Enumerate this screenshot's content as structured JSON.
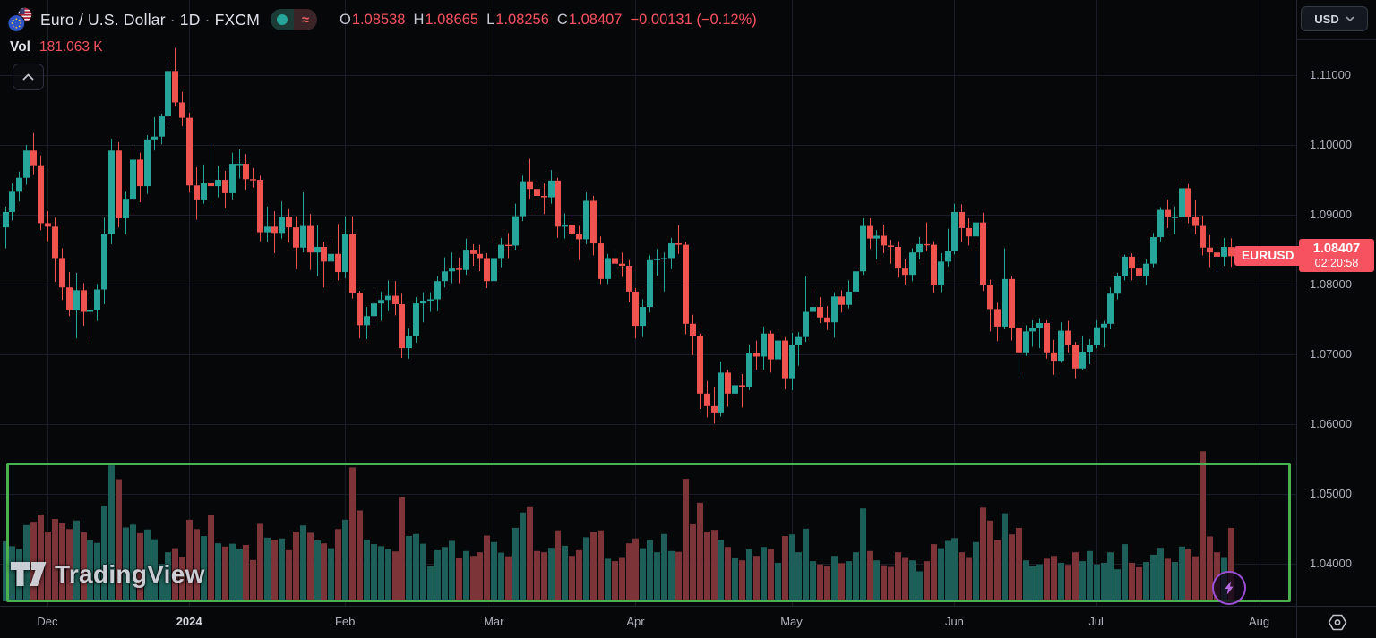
{
  "header": {
    "symbol_title": "Euro / U.S. Dollar",
    "sep": "·",
    "timeframe": "1D",
    "exchange": "FXCM",
    "market_status": {
      "delayed_glyph": "≈"
    },
    "ohlc": {
      "o_label": "O",
      "o": "1.08538",
      "h_label": "H",
      "h": "1.08665",
      "l_label": "L",
      "l": "1.08256",
      "c_label": "C",
      "c": "1.08407",
      "change": "−0.00131 (−0.12%)"
    },
    "volume_row": {
      "label": "Vol",
      "value": "181.063 K"
    }
  },
  "price_label": {
    "symbol": "EURUSD",
    "price": "1.08407",
    "countdown": "02:20:58"
  },
  "currency_button": {
    "label": "USD"
  },
  "watermark": {
    "text": "TradingView"
  },
  "icons": {
    "flag_pair": "eu-us-flags",
    "market_open": "teal-dot",
    "collapse": "chevron-up",
    "currency_chevron": "chevron-down",
    "bolt": "lightning",
    "corner": "hexagon-gear"
  },
  "colors": {
    "background": "#060709",
    "grid": "#181d27",
    "up": "#26a69a",
    "down": "#ef5350",
    "vol_up": "#1d5f58",
    "vol_down": "#7d3439",
    "accent_red": "#f7525f",
    "rect_green": "#4caf50",
    "purple": "#a855d8",
    "axis_text": "#b0b3bd"
  },
  "axes": {
    "price_ticks": [
      {
        "label": "1.11000",
        "price": 1.11
      },
      {
        "label": "1.10000",
        "price": 1.1
      },
      {
        "label": "1.09000",
        "price": 1.09
      },
      {
        "label": "1.08000",
        "price": 1.08
      },
      {
        "label": "1.07000",
        "price": 1.07
      },
      {
        "label": "1.06000",
        "price": 1.06
      },
      {
        "label": "1.05000",
        "price": 1.05
      },
      {
        "label": "1.04000",
        "price": 1.04
      }
    ],
    "time_ticks": [
      {
        "label": "Dec",
        "index": 6
      },
      {
        "label": "2024",
        "index": 26,
        "emph": true
      },
      {
        "label": "Feb",
        "index": 48
      },
      {
        "label": "Mar",
        "index": 69
      },
      {
        "label": "Apr",
        "index": 89
      },
      {
        "label": "May",
        "index": 111
      },
      {
        "label": "Jun",
        "index": 134
      },
      {
        "label": "Jul",
        "index": 154
      },
      {
        "label": "Aug",
        "index": 177
      }
    ]
  },
  "chart_data": {
    "type": "candlestick",
    "symbol": "EURUSD",
    "timeframe": "1D",
    "title": "Euro / U.S. Dollar · 1D · FXCM",
    "price_range": {
      "top": 1.12077,
      "bottom": 1.034
    },
    "last_price": 1.08407,
    "volume_axis_max": 375,
    "volume_unit": "K",
    "columns": [
      "open",
      "high",
      "low",
      "close",
      "volume_k"
    ],
    "candles": [
      [
        1.0882,
        1.0912,
        1.0852,
        1.0904,
        148
      ],
      [
        1.0904,
        1.0945,
        1.0892,
        1.0933,
        136
      ],
      [
        1.0933,
        1.0962,
        1.0919,
        1.0953,
        129
      ],
      [
        1.0953,
        1.1,
        1.0943,
        1.0992,
        188
      ],
      [
        1.0992,
        1.1017,
        1.0957,
        1.0971,
        196
      ],
      [
        1.0971,
        1.0985,
        1.0878,
        1.0888,
        214
      ],
      [
        1.0888,
        1.0905,
        1.0862,
        1.0883,
        172
      ],
      [
        1.0883,
        1.0896,
        1.0804,
        1.0838,
        203
      ],
      [
        1.0838,
        1.0852,
        1.0778,
        1.0796,
        192
      ],
      [
        1.0796,
        1.0818,
        1.0755,
        1.0763,
        178
      ],
      [
        1.0763,
        1.0817,
        1.0723,
        1.0792,
        199
      ],
      [
        1.0792,
        1.0802,
        1.0741,
        1.0761,
        170
      ],
      [
        1.0761,
        1.0779,
        1.0723,
        1.0764,
        151
      ],
      [
        1.0764,
        1.0801,
        1.0748,
        1.0793,
        144
      ],
      [
        1.0793,
        1.0896,
        1.0772,
        1.0873,
        236
      ],
      [
        1.0873,
        1.1009,
        1.0858,
        1.0992,
        335
      ],
      [
        1.0992,
        1.1004,
        1.0882,
        1.0895,
        301
      ],
      [
        1.0895,
        1.0933,
        1.0872,
        1.0923,
        182
      ],
      [
        1.0923,
        1.0997,
        1.0902,
        1.0979,
        189
      ],
      [
        1.0979,
        1.0989,
        1.0918,
        1.0941,
        168
      ],
      [
        1.0941,
        1.1014,
        1.093,
        1.1008,
        177
      ],
      [
        1.1008,
        1.104,
        1.0992,
        1.1012,
        153
      ],
      [
        1.1012,
        1.1045,
        1.1001,
        1.1041,
        92
      ],
      [
        1.1041,
        1.1122,
        1.1032,
        1.1106,
        121
      ],
      [
        1.1106,
        1.1139,
        1.1055,
        1.1061,
        131
      ],
      [
        1.1061,
        1.1076,
        1.1027,
        1.1039,
        109
      ],
      [
        1.1039,
        1.1046,
        1.0932,
        1.0942,
        201
      ],
      [
        1.0942,
        1.0968,
        1.0893,
        1.0922,
        178
      ],
      [
        1.0922,
        1.0972,
        1.0916,
        1.0945,
        161
      ],
      [
        1.0945,
        1.0999,
        1.0914,
        1.0941,
        212
      ],
      [
        1.0941,
        1.097,
        1.0925,
        1.095,
        143
      ],
      [
        1.095,
        1.0963,
        1.0909,
        1.0931,
        135
      ],
      [
        1.0931,
        1.0989,
        1.0922,
        1.0973,
        142
      ],
      [
        1.0973,
        1.0994,
        1.0952,
        1.0973,
        129
      ],
      [
        1.0973,
        1.0987,
        1.0936,
        1.0951,
        139
      ],
      [
        1.0951,
        1.0967,
        1.0939,
        1.095,
        102
      ],
      [
        1.095,
        1.0956,
        1.0862,
        1.0875,
        191
      ],
      [
        1.0875,
        1.0912,
        1.0861,
        1.0883,
        157
      ],
      [
        1.0883,
        1.0905,
        1.0845,
        1.0874,
        152
      ],
      [
        1.0874,
        1.0919,
        1.0866,
        1.0897,
        155
      ],
      [
        1.0897,
        1.0908,
        1.086,
        1.0882,
        126
      ],
      [
        1.0882,
        1.0898,
        1.0822,
        1.0853,
        172
      ],
      [
        1.0853,
        1.0932,
        1.0846,
        1.0884,
        187
      ],
      [
        1.0884,
        1.0901,
        1.0821,
        1.0846,
        169
      ],
      [
        1.0846,
        1.0885,
        1.0812,
        1.0854,
        150
      ],
      [
        1.0854,
        1.0861,
        1.0796,
        1.0833,
        143
      ],
      [
        1.0833,
        1.0866,
        1.0807,
        1.0844,
        131
      ],
      [
        1.0844,
        1.0887,
        1.0806,
        1.0818,
        178
      ],
      [
        1.0818,
        1.0898,
        1.0809,
        1.0872,
        201
      ],
      [
        1.0872,
        1.0898,
        1.078,
        1.0788,
        330
      ],
      [
        1.0788,
        1.0791,
        1.0723,
        1.0742,
        224
      ],
      [
        1.0742,
        1.0768,
        1.0722,
        1.0755,
        152
      ],
      [
        1.0755,
        1.0792,
        1.0741,
        1.0773,
        141
      ],
      [
        1.0773,
        1.079,
        1.0748,
        1.0778,
        136
      ],
      [
        1.0778,
        1.0806,
        1.0762,
        1.0784,
        129
      ],
      [
        1.0784,
        1.0805,
        1.0756,
        1.0772,
        123
      ],
      [
        1.0772,
        1.0787,
        1.0695,
        1.0709,
        258
      ],
      [
        1.0709,
        1.0737,
        1.0694,
        1.0726,
        161
      ],
      [
        1.0726,
        1.0782,
        1.0717,
        1.0773,
        166
      ],
      [
        1.0773,
        1.0789,
        1.0746,
        1.0777,
        142
      ],
      [
        1.0777,
        1.0789,
        1.0761,
        1.0779,
        87
      ],
      [
        1.0779,
        1.0812,
        1.0762,
        1.0805,
        126
      ],
      [
        1.0805,
        1.0839,
        1.0796,
        1.0819,
        134
      ],
      [
        1.0819,
        1.0846,
        1.0802,
        1.0823,
        149
      ],
      [
        1.0823,
        1.0839,
        1.0802,
        1.0821,
        106
      ],
      [
        1.0821,
        1.0866,
        1.0814,
        1.085,
        124
      ],
      [
        1.085,
        1.0858,
        1.0827,
        1.0844,
        112
      ],
      [
        1.0844,
        1.0857,
        1.0819,
        1.0838,
        121
      ],
      [
        1.0838,
        1.0845,
        1.0795,
        1.0805,
        162
      ],
      [
        1.0805,
        1.0863,
        1.0798,
        1.0838,
        146
      ],
      [
        1.0838,
        1.0867,
        1.0825,
        1.0857,
        120
      ],
      [
        1.0857,
        1.0874,
        1.0838,
        1.0856,
        111
      ],
      [
        1.0856,
        1.0916,
        1.085,
        1.0898,
        181
      ],
      [
        1.0898,
        1.0956,
        1.0891,
        1.0948,
        219
      ],
      [
        1.0948,
        1.098,
        1.0923,
        1.0937,
        232
      ],
      [
        1.0937,
        1.0949,
        1.0908,
        1.0927,
        124
      ],
      [
        1.0927,
        1.0945,
        1.0901,
        1.0925,
        121
      ],
      [
        1.0925,
        1.0964,
        1.0916,
        1.0949,
        132
      ],
      [
        1.0949,
        1.0953,
        1.0867,
        1.0883,
        175
      ],
      [
        1.0883,
        1.0902,
        1.0866,
        1.0886,
        137
      ],
      [
        1.0886,
        1.0895,
        1.0856,
        1.0872,
        112
      ],
      [
        1.0872,
        1.0884,
        1.0835,
        1.0865,
        126
      ],
      [
        1.0865,
        1.0932,
        1.0858,
        1.092,
        158
      ],
      [
        1.092,
        1.0927,
        1.0842,
        1.0859,
        171
      ],
      [
        1.0859,
        1.0869,
        1.0801,
        1.0808,
        175
      ],
      [
        1.0808,
        1.0844,
        1.0801,
        1.0838,
        105
      ],
      [
        1.0838,
        1.0849,
        1.0816,
        1.083,
        99
      ],
      [
        1.083,
        1.0846,
        1.0811,
        1.0827,
        107
      ],
      [
        1.0827,
        1.0835,
        1.0775,
        1.079,
        143
      ],
      [
        1.079,
        1.0795,
        1.0723,
        1.0741,
        155
      ],
      [
        1.0741,
        1.0779,
        1.0725,
        1.0768,
        131
      ],
      [
        1.0768,
        1.0842,
        1.076,
        1.0835,
        151
      ],
      [
        1.0835,
        1.0851,
        1.0813,
        1.0837,
        121
      ],
      [
        1.0837,
        1.0846,
        1.079,
        1.0838,
        166
      ],
      [
        1.0838,
        1.0867,
        1.0822,
        1.0859,
        124
      ],
      [
        1.0859,
        1.0885,
        1.0844,
        1.0857,
        122
      ],
      [
        1.0857,
        1.0861,
        1.0729,
        1.0744,
        302
      ],
      [
        1.0744,
        1.0757,
        1.0699,
        1.0727,
        190
      ],
      [
        1.0727,
        1.073,
        1.0622,
        1.0644,
        243
      ],
      [
        1.0644,
        1.0662,
        1.061,
        1.0626,
        172
      ],
      [
        1.0626,
        1.0654,
        1.0601,
        1.0617,
        176
      ],
      [
        1.0617,
        1.069,
        1.0611,
        1.0674,
        152
      ],
      [
        1.0674,
        1.0678,
        1.0625,
        1.0644,
        134
      ],
      [
        1.0644,
        1.0678,
        1.064,
        1.0656,
        106
      ],
      [
        1.0656,
        1.0672,
        1.0624,
        1.0654,
        101
      ],
      [
        1.0654,
        1.0714,
        1.0649,
        1.0702,
        128
      ],
      [
        1.0702,
        1.072,
        1.0678,
        1.0697,
        112
      ],
      [
        1.0697,
        1.074,
        1.0678,
        1.073,
        134
      ],
      [
        1.073,
        1.0734,
        1.0674,
        1.0693,
        129
      ],
      [
        1.0693,
        1.0733,
        1.0689,
        1.072,
        95
      ],
      [
        1.072,
        1.0725,
        1.065,
        1.0666,
        161
      ],
      [
        1.0666,
        1.0731,
        1.0649,
        1.0714,
        165
      ],
      [
        1.0714,
        1.0732,
        1.0684,
        1.0725,
        121
      ],
      [
        1.0725,
        1.0812,
        1.0718,
        1.0761,
        179
      ],
      [
        1.0761,
        1.0791,
        1.0752,
        1.0768,
        99
      ],
      [
        1.0768,
        1.0782,
        1.0745,
        1.0753,
        91
      ],
      [
        1.0753,
        1.0769,
        1.0735,
        1.0746,
        87
      ],
      [
        1.0746,
        1.0789,
        1.0724,
        1.0783,
        112
      ],
      [
        1.0783,
        1.0792,
        1.076,
        1.0771,
        94
      ],
      [
        1.0771,
        1.0806,
        1.0766,
        1.079,
        99
      ],
      [
        1.079,
        1.0826,
        1.0784,
        1.0819,
        121
      ],
      [
        1.0819,
        1.0895,
        1.0814,
        1.0884,
        229
      ],
      [
        1.0884,
        1.0895,
        1.0851,
        1.0866,
        124
      ],
      [
        1.0866,
        1.0878,
        1.0836,
        1.087,
        101
      ],
      [
        1.087,
        1.0886,
        1.0845,
        1.0856,
        89
      ],
      [
        1.0856,
        1.0864,
        1.083,
        1.0854,
        85
      ],
      [
        1.0854,
        1.0862,
        1.081,
        1.0823,
        121
      ],
      [
        1.0823,
        1.0836,
        1.08,
        1.0814,
        107
      ],
      [
        1.0814,
        1.0852,
        1.0805,
        1.0846,
        101
      ],
      [
        1.0846,
        1.0868,
        1.0836,
        1.0858,
        74
      ],
      [
        1.0858,
        1.0889,
        1.0848,
        1.0857,
        99
      ],
      [
        1.0857,
        1.0862,
        1.0788,
        1.0799,
        141
      ],
      [
        1.0799,
        1.0845,
        1.0789,
        1.0833,
        131
      ],
      [
        1.0833,
        1.088,
        1.0826,
        1.0848,
        149
      ],
      [
        1.0848,
        1.0916,
        1.0843,
        1.0904,
        156
      ],
      [
        1.0904,
        1.0915,
        1.0861,
        1.0881,
        121
      ],
      [
        1.0881,
        1.0895,
        1.0856,
        1.0869,
        107
      ],
      [
        1.0869,
        1.0902,
        1.0852,
        1.0889,
        146
      ],
      [
        1.0889,
        1.0903,
        1.0791,
        1.08,
        231
      ],
      [
        1.08,
        1.0807,
        1.0733,
        1.0765,
        199
      ],
      [
        1.0765,
        1.0774,
        1.0719,
        1.074,
        151
      ],
      [
        1.074,
        1.0852,
        1.0736,
        1.0808,
        217
      ],
      [
        1.0808,
        1.0812,
        1.072,
        1.0738,
        165
      ],
      [
        1.0738,
        1.0742,
        1.0667,
        1.0703,
        181
      ],
      [
        1.0703,
        1.0742,
        1.0698,
        1.0733,
        101
      ],
      [
        1.0733,
        1.0749,
        1.0711,
        1.0738,
        87
      ],
      [
        1.0738,
        1.0752,
        1.0709,
        1.0745,
        91
      ],
      [
        1.0745,
        1.0749,
        1.0694,
        1.0703,
        105
      ],
      [
        1.0703,
        1.0721,
        1.0671,
        1.0691,
        112
      ],
      [
        1.0691,
        1.0746,
        1.0688,
        1.0734,
        95
      ],
      [
        1.0734,
        1.0748,
        1.0703,
        1.0714,
        90
      ],
      [
        1.0714,
        1.0718,
        1.0666,
        1.068,
        121
      ],
      [
        1.068,
        1.0726,
        1.0678,
        1.0704,
        99
      ],
      [
        1.0704,
        1.0722,
        1.0686,
        1.0713,
        124
      ],
      [
        1.0713,
        1.0749,
        1.0709,
        1.0739,
        91
      ],
      [
        1.0739,
        1.0748,
        1.071,
        1.0744,
        95
      ],
      [
        1.0744,
        1.0796,
        1.0736,
        1.0787,
        121
      ],
      [
        1.0787,
        1.0817,
        1.0779,
        1.0812,
        79
      ],
      [
        1.0812,
        1.0843,
        1.0806,
        1.084,
        141
      ],
      [
        1.084,
        1.0845,
        1.0806,
        1.0823,
        95
      ],
      [
        1.0823,
        1.0834,
        1.0804,
        1.0813,
        84
      ],
      [
        1.0813,
        1.0836,
        1.0799,
        1.083,
        97
      ],
      [
        1.083,
        1.0874,
        1.0825,
        1.0868,
        115
      ],
      [
        1.0868,
        1.0911,
        1.0862,
        1.0907,
        132
      ],
      [
        1.0907,
        1.0922,
        1.0881,
        1.0897,
        105
      ],
      [
        1.0897,
        1.0912,
        1.0872,
        1.0897,
        97
      ],
      [
        1.0897,
        1.0948,
        1.0891,
        1.0938,
        135
      ],
      [
        1.0938,
        1.0944,
        1.0888,
        1.0897,
        128
      ],
      [
        1.0897,
        1.0921,
        1.0872,
        1.0884,
        111
      ],
      [
        1.0884,
        1.0899,
        1.0842,
        1.0853,
        370
      ],
      [
        1.0853,
        1.0871,
        1.0825,
        1.0846,
        160
      ],
      [
        1.0846,
        1.0858,
        1.0822,
        1.084,
        121
      ],
      [
        1.084,
        1.0867,
        1.0827,
        1.0854,
        107
      ],
      [
        1.08538,
        1.08665,
        1.08256,
        1.08407,
        181.063
      ]
    ],
    "annotations": [
      {
        "type": "rectangle",
        "purpose": "volume-pane-highlight",
        "color": "#4caf50"
      },
      {
        "type": "button",
        "purpose": "lightning-quick-action",
        "color": "#a855d8"
      }
    ]
  }
}
